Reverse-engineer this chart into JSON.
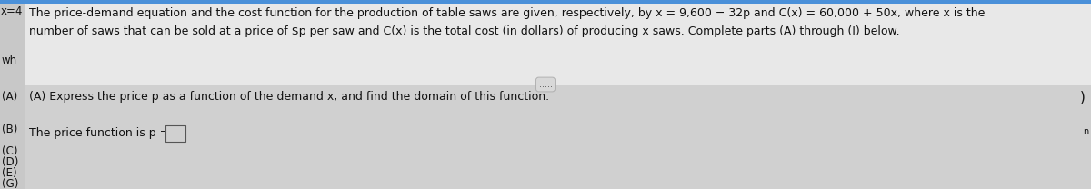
{
  "bg_color_top": "#e0e0e0",
  "bg_color_bottom": "#c0c0c0",
  "bg_color_left_strip": "#b8b8b8",
  "bg_color_page": "#f0f0f0",
  "blue_bar_color": "#5b9bd5",
  "left_x_label": "x=4",
  "sidebar_labels": [
    "wh",
    "(A)",
    "(B)",
    "(C)",
    "(D)",
    "(E)",
    "(G)"
  ],
  "top_text_line1": "The price-demand equation and the cost function for the production of table saws are given, respectively, by x = 9,600 − 32p and C(x) = 60,000 + 50x, where x is the",
  "top_text_line2": "number of saws that can be sold at a price of $p per saw and C(x) is the total cost (in dollars) of producing x saws. Complete parts (A) through (I) below.",
  "divider_dots": ".....",
  "part_A_instruction": "(A) Express the price p as a function of the demand x, and find the domain of this function.",
  "price_fn_label": "The price function is p =",
  "font_size": 9.0,
  "font_size_small": 8.5,
  "right_bracket": ")",
  "right_n": "n"
}
